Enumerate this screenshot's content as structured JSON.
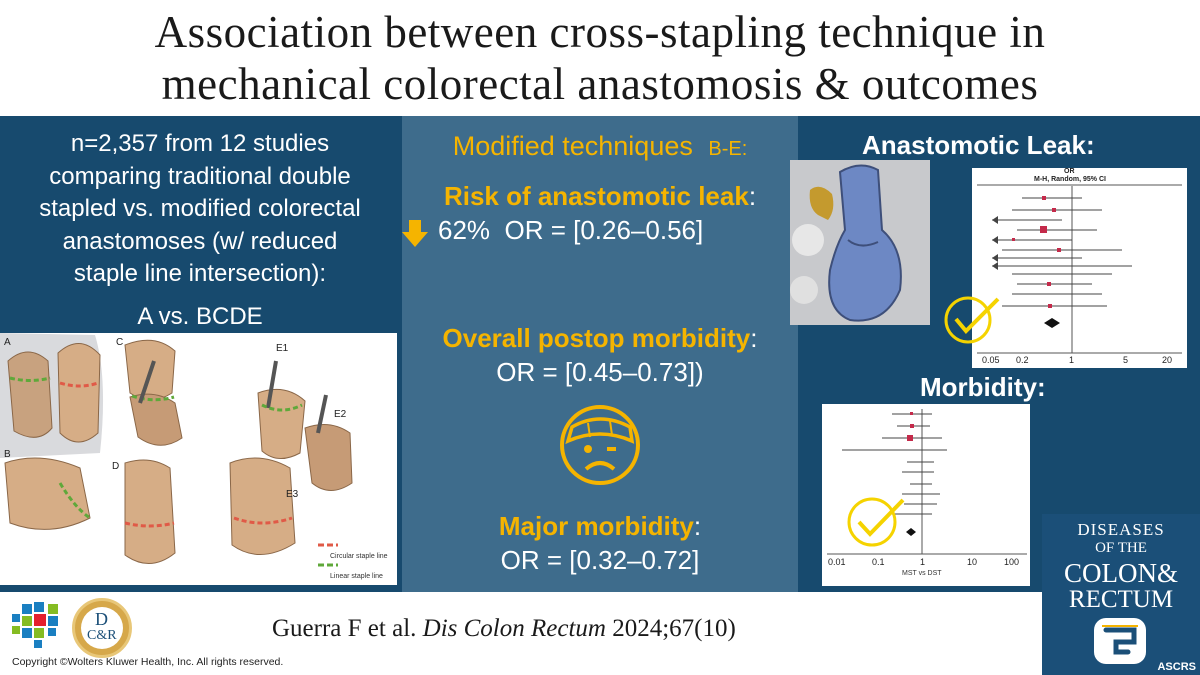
{
  "title": {
    "line1": "Association between cross-stapling technique in",
    "line2": "mechanical colorectal anastomosis & outcomes"
  },
  "left": {
    "lines": [
      "n=2,357 from 12 studies",
      "comparing traditional double",
      "stapled vs. modified colorectal",
      "anastomoses (w/ reduced",
      "staple line intersection):"
    ],
    "comparison": "A vs. BCDE",
    "figure_labels": [
      "A",
      "C",
      "E1",
      "E2",
      "B",
      "D",
      "E3"
    ],
    "legend": {
      "circular": "Circular staple line",
      "linear": "Linear staple line"
    }
  },
  "center": {
    "heading": "Modified techniques",
    "heading_suffix": "B-E:",
    "leak_label": "Risk of anastomotic leak",
    "leak_value": "62%  OR = [0.26–0.56]",
    "morbidity_label": "Overall postop morbidity",
    "morbidity_value": "OR = [0.45–0.73])",
    "major_label": "Major morbidity",
    "major_value": "OR = [0.32–0.72]",
    "colon": ":"
  },
  "right": {
    "leak_title": "Anastomotic Leak:",
    "leak_plot": {
      "header1": "OR",
      "header2": "M-H, Random, 95% CI",
      "ticks": [
        "0.05",
        "0.2",
        "1",
        "5",
        "20"
      ]
    },
    "morbidity_title": "Morbidity:",
    "morbidity_plot": {
      "ticks": [
        "0.01",
        "0.1",
        "1",
        "10",
        "100"
      ],
      "footer": "MST vs DST"
    }
  },
  "citation": {
    "authors": "Guerra F et al. ",
    "journal": "Dis Colon Rectum",
    "ref": " 2024;67(10)"
  },
  "copyright": "Copyright ©Wolters Kluwer Health, Inc. All rights reserved.",
  "logo_dcr": {
    "top": "D",
    "bottom": "C&R"
  },
  "journal_cover": {
    "line1": "DISEASES",
    "line2": "OF THE",
    "line3": "COLON&",
    "line4": "RECTUM",
    "footer": "ASCRS"
  }
}
